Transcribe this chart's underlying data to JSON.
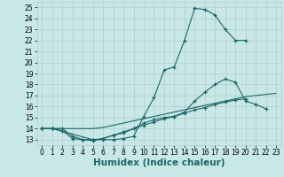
{
  "xlabel": "Humidex (Indice chaleur)",
  "xlim": [
    -0.5,
    23.5
  ],
  "ylim": [
    12.5,
    25.5
  ],
  "xticks": [
    0,
    1,
    2,
    3,
    4,
    5,
    6,
    7,
    8,
    9,
    10,
    11,
    12,
    13,
    14,
    15,
    16,
    17,
    18,
    19,
    20,
    21,
    22,
    23
  ],
  "yticks": [
    13,
    14,
    15,
    16,
    17,
    18,
    19,
    20,
    21,
    22,
    23,
    24,
    25
  ],
  "bg_color": "#c8e8e8",
  "line_color": "#1a6666",
  "grid_color": "#b0cccc",
  "lines": [
    {
      "x": [
        0,
        1,
        2,
        3,
        4,
        5,
        6,
        7,
        8,
        9,
        10,
        11,
        12,
        13,
        14,
        15,
        16,
        17,
        18,
        19,
        20
      ],
      "y": [
        14,
        14,
        13.8,
        13.1,
        13.0,
        13.0,
        13.0,
        13.0,
        13.1,
        13.3,
        15.1,
        16.8,
        19.3,
        19.6,
        22.0,
        24.9,
        24.8,
        24.3,
        23.0,
        22.0,
        22.0
      ],
      "marker": true
    },
    {
      "x": [
        0,
        1,
        5,
        6,
        7,
        8,
        9,
        10,
        11,
        12,
        13,
        14,
        15,
        16,
        17,
        18,
        19,
        20,
        21,
        22
      ],
      "y": [
        14.0,
        14.0,
        13.0,
        13.1,
        13.4,
        13.7,
        14.0,
        14.5,
        14.8,
        15.0,
        15.1,
        15.5,
        16.5,
        17.3,
        18.0,
        18.5,
        18.2,
        16.5,
        16.2,
        15.8
      ],
      "marker": true
    },
    {
      "x": [
        0,
        1,
        2,
        3,
        4,
        5,
        6,
        7,
        8,
        9,
        10,
        11,
        12,
        13,
        14,
        15,
        16,
        17,
        18,
        19,
        20
      ],
      "y": [
        14.0,
        14.0,
        14.0,
        13.3,
        13.0,
        12.9,
        13.1,
        13.4,
        13.6,
        14.0,
        14.3,
        14.6,
        14.9,
        15.1,
        15.4,
        15.7,
        15.9,
        16.2,
        16.4,
        16.6,
        16.7
      ],
      "marker": true
    },
    {
      "x": [
        0,
        1,
        2,
        3,
        4,
        5,
        6,
        7,
        8,
        9,
        10,
        11,
        12,
        13,
        14,
        15,
        16,
        17,
        18,
        19,
        20,
        21,
        22,
        23
      ],
      "y": [
        14.0,
        14.0,
        14.0,
        14.0,
        14.0,
        14.0,
        14.1,
        14.3,
        14.5,
        14.7,
        14.9,
        15.1,
        15.3,
        15.5,
        15.7,
        15.9,
        16.1,
        16.3,
        16.5,
        16.7,
        16.9,
        17.0,
        17.1,
        17.2
      ],
      "marker": false
    }
  ],
  "tick_fontsize": 5.5,
  "label_fontsize": 7.5
}
